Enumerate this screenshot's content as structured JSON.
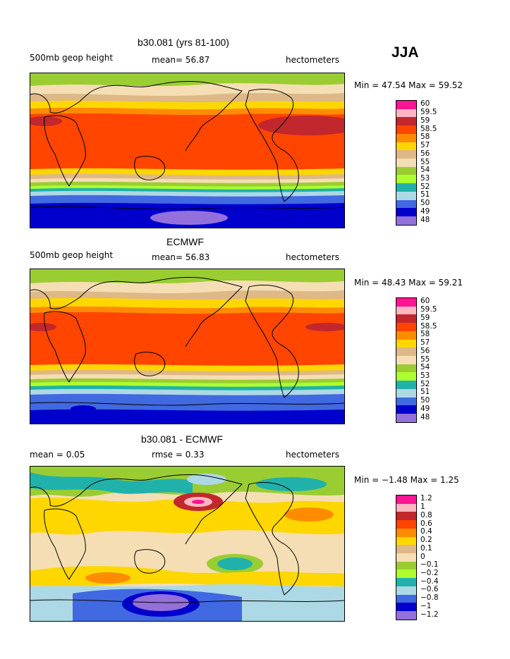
{
  "season": "JJA",
  "panels": [
    {
      "title": "b30.081 (yrs 81-100)",
      "left_label": "500mb geop height",
      "center_label": "mean=  56.87",
      "units": "hectometers",
      "minmax_text": "Min =  47.54 Max =  59.52",
      "legend": {
        "labels": [
          "60",
          "59.5",
          "59",
          "58.5",
          "58",
          "57",
          "56",
          "55",
          "54",
          "53",
          "52",
          "51",
          "50",
          "49",
          "48"
        ],
        "colors": [
          "#ff1493",
          "#ffb6c1",
          "#c1272d",
          "#ff4500",
          "#ff8c00",
          "#ffd700",
          "#deb887",
          "#f5deb3",
          "#9acd32",
          "#adff2f",
          "#20b2aa",
          "#add8e6",
          "#4169e1",
          "#0000cd",
          "#9370db"
        ]
      }
    },
    {
      "title": "ECMWF",
      "left_label": "500mb geop height",
      "center_label": "mean=  56.83",
      "units": "hectometers",
      "minmax_text": "Min =  48.43 Max =  59.21",
      "legend": {
        "labels": [
          "60",
          "59.5",
          "59",
          "58.5",
          "58",
          "57",
          "56",
          "55",
          "54",
          "53",
          "52",
          "51",
          "50",
          "49",
          "48"
        ],
        "colors": [
          "#ff1493",
          "#ffb6c1",
          "#c1272d",
          "#ff4500",
          "#ff8c00",
          "#ffd700",
          "#deb887",
          "#f5deb3",
          "#9acd32",
          "#adff2f",
          "#20b2aa",
          "#add8e6",
          "#4169e1",
          "#0000cd",
          "#9370db"
        ]
      }
    },
    {
      "title": "b30.081 - ECMWF",
      "left_label": "mean =   0.05",
      "center_label": "rmse =   0.33",
      "units": "hectometers",
      "minmax_text": "Min =  −1.48 Max =   1.25",
      "legend": {
        "labels": [
          "1.2",
          "1",
          "0.8",
          "0.6",
          "0.4",
          "0.2",
          "0.1",
          "0",
          "−0.1",
          "−0.2",
          "−0.4",
          "−0.6",
          "−0.8",
          "−1",
          "−1.2"
        ],
        "colors": [
          "#ff1493",
          "#ffb6c1",
          "#c1272d",
          "#ff4500",
          "#ff8c00",
          "#ffd700",
          "#deb887",
          "#f5deb3",
          "#9acd32",
          "#adff2f",
          "#20b2aa",
          "#add8e6",
          "#4169e1",
          "#0000cd",
          "#9370db"
        ]
      }
    }
  ],
  "chart_data": [
    {
      "type": "heatmap",
      "title": "b30.081 (yrs 81-100)",
      "variable": "500mb geop height",
      "units": "hectometers",
      "mean": 56.87,
      "min": 47.54,
      "max": 59.52,
      "contour_levels": [
        48,
        49,
        50,
        51,
        52,
        53,
        54,
        55,
        56,
        57,
        58,
        58.5,
        59,
        59.5,
        60
      ]
    },
    {
      "type": "heatmap",
      "title": "ECMWF",
      "variable": "500mb geop height",
      "units": "hectometers",
      "mean": 56.83,
      "min": 48.43,
      "max": 59.21,
      "contour_levels": [
        48,
        49,
        50,
        51,
        52,
        53,
        54,
        55,
        56,
        57,
        58,
        58.5,
        59,
        59.5,
        60
      ]
    },
    {
      "type": "heatmap",
      "title": "b30.081 - ECMWF",
      "units": "hectometers",
      "mean": 0.05,
      "rmse": 0.33,
      "min": -1.48,
      "max": 1.25,
      "contour_levels": [
        -1.2,
        -1,
        -0.8,
        -0.6,
        -0.4,
        -0.2,
        -0.1,
        0,
        0.1,
        0.2,
        0.4,
        0.6,
        0.8,
        1,
        1.2
      ]
    }
  ]
}
